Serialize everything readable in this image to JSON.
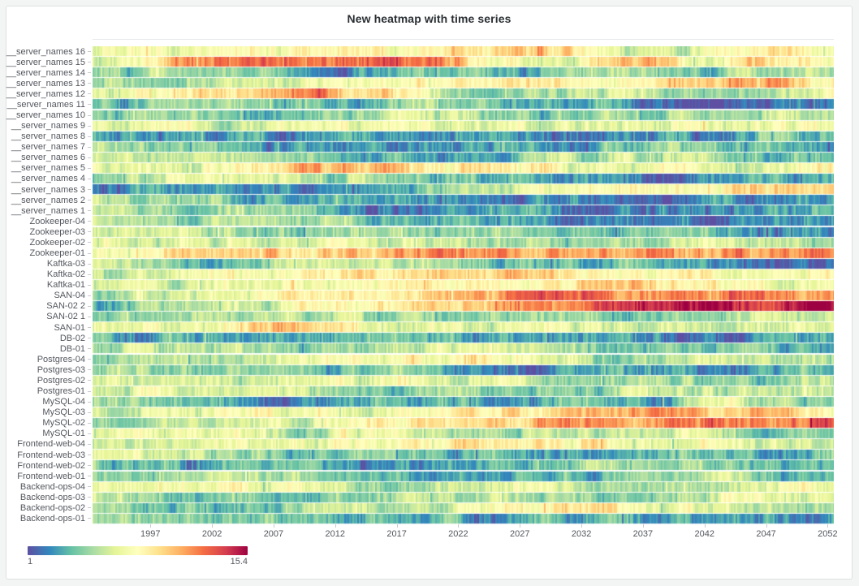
{
  "panel": {
    "title": "New heatmap with time series"
  },
  "chart_data": {
    "type": "heatmap",
    "title": "New heatmap with time series",
    "x_axis": {
      "label": "",
      "range": [
        1992.3,
        2052.5
      ],
      "tick_years": [
        1997,
        2002,
        2007,
        2012,
        2017,
        2022,
        2027,
        2032,
        2037,
        2042,
        2047,
        2052
      ],
      "tick_labels": [
        "1997",
        "2002",
        "2007",
        "2012",
        "2017",
        "2022",
        "2027",
        "2032",
        "2037",
        "2042",
        "2047",
        "2052"
      ]
    },
    "y_axis": {
      "order": "top-to-bottom",
      "rows": [
        "__server_names 16",
        "__server_names 15",
        "__server_names 14",
        "__server_names 13",
        "__server_names 12",
        "__server_names 11",
        "__server_names 10",
        "__server_names 9",
        "__server_names 8",
        "__server_names 7",
        "__server_names 6",
        "__server_names 5",
        "__server_names 4",
        "__server_names 3",
        "__server_names 2",
        "__server_names 1",
        "Zookeeper-04",
        "Zookeeper-03",
        "Zookeeper-02",
        "Zookeeper-01",
        "Kaftka-03",
        "Kaftka-02",
        "Kaftka-01",
        "SAN-04",
        "SAN-02 2",
        "SAN-02 1",
        "SAN-01",
        "DB-02",
        "DB-01",
        "Postgres-04",
        "Postgres-03",
        "Postgres-02",
        "Postgres-01",
        "MySQL-04",
        "MySQL-03",
        "MySQL-02",
        "MySQL-01",
        "Frontend-web-04",
        "Frontend-web-03",
        "Frontend-web-02",
        "Frontend-web-01",
        "Backend-ops-04",
        "Backend-ops-03",
        "Backend-ops-02",
        "Backend-ops-01"
      ]
    },
    "value_range": [
      1,
      15.4
    ],
    "legend": {
      "min_label": "1",
      "max_label": "15.4",
      "position": "bottom-left"
    },
    "palette": {
      "name": "spectral-reversed",
      "stops": [
        "#5e4fa2",
        "#3288bd",
        "#66c2a5",
        "#abdda4",
        "#e6f598",
        "#ffffbf",
        "#fee08b",
        "#fdae61",
        "#f46d43",
        "#d53e4f",
        "#9e0142"
      ]
    },
    "grid": false,
    "note": "values are control points sampled evenly across the x range for each row",
    "series": [
      {
        "name": "__server_names 16",
        "values": [
          6.8,
          7.8,
          7.2,
          7.8,
          8.3,
          9.2,
          11.2,
          9.0,
          6.2,
          7.0,
          8.0,
          7.6
        ]
      },
      {
        "name": "__server_names 15",
        "values": [
          7.0,
          9.5,
          12.3,
          12.8,
          12.3,
          12.8,
          9.0,
          7.0,
          11.3,
          7.5,
          9.8,
          8.2
        ]
      },
      {
        "name": "__server_names 14",
        "values": [
          5.5,
          5.0,
          4.2,
          2.8,
          3.2,
          4.8,
          3.5,
          4.0,
          5.2,
          4.5,
          5.5,
          6.0
        ]
      },
      {
        "name": "__server_names 13",
        "values": [
          4.2,
          5.0,
          6.2,
          6.8,
          7.5,
          8.0,
          8.5,
          8.2,
          8.8,
          10.0,
          12.0,
          9.0
        ]
      },
      {
        "name": "__server_names 12",
        "values": [
          7.0,
          7.8,
          8.6,
          12.0,
          10.5,
          7.0,
          4.6,
          5.2,
          6.8,
          4.8,
          5.4,
          6.6
        ]
      },
      {
        "name": "__server_names 11",
        "values": [
          4.5,
          4.0,
          5.0,
          4.2,
          3.6,
          4.4,
          3.0,
          2.6,
          3.2,
          1.8,
          1.5,
          2.6
        ]
      },
      {
        "name": "__server_names 10",
        "values": [
          5.0,
          5.5,
          4.5,
          3.8,
          5.8,
          6.5,
          4.2,
          3.8,
          5.0,
          6.0,
          5.5,
          6.2
        ]
      },
      {
        "name": "__server_names 9",
        "values": [
          6.8,
          7.2,
          6.5,
          7.0,
          7.5,
          6.8,
          7.2,
          6.5,
          7.0,
          7.4,
          7.8,
          8.0
        ]
      },
      {
        "name": "__server_names 8",
        "values": [
          4.5,
          3.2,
          2.6,
          3.0,
          2.4,
          2.6,
          3.2,
          2.8,
          2.4,
          3.0,
          3.6,
          4.2
        ]
      },
      {
        "name": "__server_names 7",
        "values": [
          5.8,
          5.0,
          4.0,
          2.8,
          2.4,
          2.6,
          3.0,
          2.5,
          3.8,
          4.6,
          3.6,
          3.2
        ]
      },
      {
        "name": "__server_names 6",
        "values": [
          6.5,
          6.8,
          5.5,
          5.0,
          4.0,
          3.6,
          4.2,
          5.5,
          6.2,
          5.0,
          4.4,
          5.2
        ]
      },
      {
        "name": "__server_names 5",
        "values": [
          7.5,
          7.0,
          8.2,
          11.0,
          10.2,
          9.0,
          8.4,
          7.6,
          7.0,
          7.4,
          6.8,
          8.6
        ]
      },
      {
        "name": "__server_names 4",
        "values": [
          4.6,
          6.4,
          7.0,
          6.0,
          5.2,
          4.4,
          3.6,
          3.2,
          2.6,
          2.2,
          3.0,
          3.8
        ]
      },
      {
        "name": "__server_names 3",
        "values": [
          3.4,
          2.8,
          2.4,
          1.8,
          2.6,
          4.8,
          6.6,
          7.6,
          8.0,
          8.4,
          9.6,
          10.6
        ]
      },
      {
        "name": "__server_names 2",
        "values": [
          6.2,
          5.4,
          4.6,
          3.4,
          2.6,
          3.0,
          2.4,
          1.8,
          2.2,
          2.8,
          2.4,
          3.0
        ]
      },
      {
        "name": "__server_names 1",
        "values": [
          6.4,
          5.6,
          4.8,
          4.2,
          3.0,
          2.6,
          3.2,
          2.4,
          2.8,
          2.2,
          3.4,
          4.0
        ]
      },
      {
        "name": "Zookeeper-04",
        "values": [
          6.6,
          6.0,
          5.4,
          5.8,
          5.0,
          4.2,
          3.4,
          2.4,
          1.9,
          2.2,
          2.6,
          3.4
        ]
      },
      {
        "name": "Zookeeper-03",
        "values": [
          6.8,
          6.2,
          5.4,
          4.6,
          5.2,
          4.4,
          5.0,
          4.2,
          4.8,
          4.0,
          3.2,
          1.9
        ]
      },
      {
        "name": "Zookeeper-02",
        "values": [
          7.0,
          6.6,
          7.2,
          6.4,
          7.0,
          6.2,
          5.4,
          4.4,
          5.6,
          6.4,
          5.8,
          4.4
        ]
      },
      {
        "name": "Zookeeper-01",
        "values": [
          7.6,
          8.8,
          10.6,
          9.6,
          10.8,
          11.6,
          11.0,
          12.0,
          11.2,
          12.2,
          11.4,
          12.0
        ]
      },
      {
        "name": "Kaftka-03",
        "values": [
          6.2,
          4.4,
          3.8,
          5.4,
          6.0,
          5.0,
          4.2,
          3.6,
          4.4,
          2.8,
          2.0,
          2.4
        ]
      },
      {
        "name": "Kaftka-02",
        "values": [
          5.4,
          6.2,
          7.0,
          7.6,
          8.2,
          8.8,
          9.8,
          8.6,
          7.8,
          8.2,
          7.4,
          7.8
        ]
      },
      {
        "name": "Kaftka-01",
        "values": [
          6.6,
          5.8,
          6.4,
          7.2,
          7.8,
          8.4,
          9.0,
          9.6,
          11.2,
          9.2,
          8.0,
          7.6
        ]
      },
      {
        "name": "SAN-04",
        "values": [
          4.8,
          6.0,
          7.0,
          7.8,
          8.6,
          9.6,
          11.4,
          12.6,
          12.0,
          11.4,
          12.2,
          11.6
        ]
      },
      {
        "name": "SAN-02 2",
        "values": [
          4.6,
          5.6,
          6.6,
          7.6,
          8.4,
          9.4,
          10.6,
          11.8,
          12.8,
          13.8,
          14.6,
          15.2
        ]
      },
      {
        "name": "SAN-02 1",
        "values": [
          5.2,
          4.6,
          5.4,
          6.0,
          5.0,
          4.4,
          5.6,
          4.8,
          4.2,
          5.4,
          6.0,
          5.6
        ]
      },
      {
        "name": "SAN-01",
        "values": [
          7.2,
          6.8,
          7.4,
          10.4,
          8.0,
          7.0,
          6.2,
          6.8,
          6.0,
          6.6,
          7.2,
          6.8
        ]
      },
      {
        "name": "DB-02",
        "values": [
          4.0,
          2.8,
          2.4,
          2.8,
          3.4,
          4.6,
          3.0,
          2.6,
          3.2,
          2.0,
          2.4,
          3.6
        ]
      },
      {
        "name": "DB-01",
        "values": [
          5.0,
          5.8,
          6.4,
          5.4,
          4.6,
          5.6,
          6.2,
          5.2,
          4.4,
          5.0,
          4.2,
          3.0
        ]
      },
      {
        "name": "Postgres-04",
        "values": [
          4.4,
          5.2,
          6.2,
          7.0,
          7.6,
          7.2,
          7.8,
          6.4,
          4.8,
          5.6,
          6.2,
          5.8
        ]
      },
      {
        "name": "Postgres-03",
        "values": [
          4.8,
          5.4,
          4.6,
          4.0,
          4.6,
          3.8,
          3.2,
          2.6,
          2.2,
          2.8,
          2.4,
          3.8
        ]
      },
      {
        "name": "Postgres-02",
        "values": [
          6.4,
          5.8,
          6.6,
          7.2,
          6.8,
          7.4,
          6.6,
          5.8,
          4.6,
          4.0,
          5.2,
          6.0
        ]
      },
      {
        "name": "Postgres-01",
        "values": [
          6.6,
          7.0,
          6.2,
          6.8,
          5.4,
          4.6,
          5.2,
          4.4,
          5.8,
          5.0,
          6.2,
          5.6
        ]
      },
      {
        "name": "MySQL-04",
        "values": [
          5.2,
          4.4,
          3.6,
          2.8,
          3.4,
          4.2,
          3.6,
          4.4,
          3.8,
          5.6,
          6.0,
          3.8
        ]
      },
      {
        "name": "MySQL-03",
        "values": [
          6.4,
          7.0,
          7.6,
          8.2,
          7.8,
          8.6,
          9.2,
          10.2,
          11.4,
          10.8,
          11.6,
          8.4
        ]
      },
      {
        "name": "MySQL-02",
        "values": [
          4.6,
          5.8,
          6.8,
          7.8,
          8.4,
          9.2,
          10.0,
          11.0,
          11.8,
          12.4,
          12.0,
          13.6
        ]
      },
      {
        "name": "MySQL-01",
        "values": [
          7.0,
          6.6,
          7.2,
          6.4,
          7.0,
          6.2,
          6.8,
          5.8,
          5.2,
          6.0,
          5.4,
          6.2
        ]
      },
      {
        "name": "Frontend-web-04",
        "values": [
          6.2,
          6.8,
          7.4,
          7.0,
          7.8,
          8.4,
          9.0,
          8.2,
          7.4,
          6.6,
          7.0,
          6.4
        ]
      },
      {
        "name": "Frontend-web-03",
        "values": [
          7.2,
          6.4,
          5.2,
          4.4,
          5.0,
          4.2,
          3.4,
          3.8,
          3.0,
          4.4,
          2.6,
          4.6
        ]
      },
      {
        "name": "Frontend-web-02",
        "values": [
          6.0,
          3.6,
          3.0,
          4.2,
          2.6,
          2.2,
          3.2,
          4.0,
          5.2,
          4.6,
          3.4,
          3.8
        ]
      },
      {
        "name": "Frontend-web-01",
        "values": [
          5.6,
          5.0,
          5.8,
          4.8,
          3.6,
          2.8,
          3.4,
          4.2,
          3.8,
          4.6,
          4.0,
          4.4
        ]
      },
      {
        "name": "Backend-ops-04",
        "values": [
          7.4,
          6.8,
          7.6,
          6.6,
          5.8,
          5.2,
          6.0,
          6.6,
          4.8,
          5.4,
          6.8,
          7.8
        ]
      },
      {
        "name": "Backend-ops-03",
        "values": [
          6.6,
          6.0,
          5.2,
          4.4,
          5.0,
          6.2,
          5.4,
          4.6,
          5.2,
          6.0,
          7.0,
          7.6
        ]
      },
      {
        "name": "Backend-ops-02",
        "values": [
          5.4,
          4.2,
          3.6,
          4.4,
          5.6,
          6.4,
          7.2,
          10.8,
          7.4,
          6.6,
          5.8,
          6.2
        ]
      },
      {
        "name": "Backend-ops-01",
        "values": [
          5.6,
          5.0,
          4.4,
          3.8,
          3.2,
          3.6,
          2.8,
          3.4,
          3.0,
          2.6,
          3.2,
          1.8
        ]
      }
    ]
  }
}
